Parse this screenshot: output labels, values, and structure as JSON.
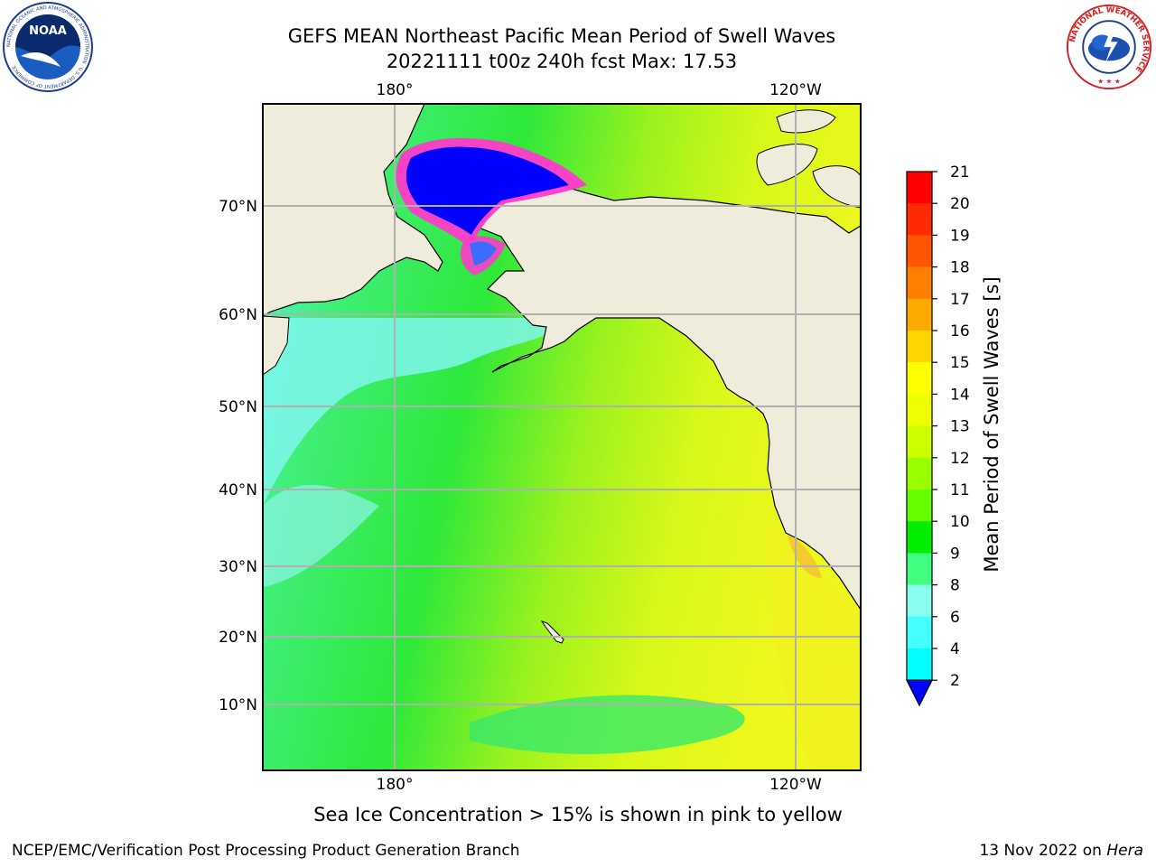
{
  "header": {
    "title_line1": "GEFS MEAN Northeast Pacific Mean Period of Swell Waves",
    "title_line2": "20221111 t00z 240h fcst   Max: 17.53"
  },
  "logos": {
    "left": {
      "text": "NOAA",
      "ring_text": "NATIONAL OCEANIC AND ATMOSPHERIC ADMINISTRATION · U.S. DEPARTMENT OF COMMERCE"
    },
    "right": {
      "ring_text": "NATIONAL WEATHER SERVICE"
    }
  },
  "map": {
    "lon_labels": [
      "180°",
      "120°W"
    ],
    "lat_labels": [
      "70°N",
      "60°N",
      "50°N",
      "40°N",
      "30°N",
      "20°N",
      "10°N"
    ],
    "colors": {
      "land": "#efecdc",
      "grid": "#b0b0b0",
      "ice_deep": "#0000ff",
      "ice_edge": "#ff33cc"
    }
  },
  "colorbar": {
    "title": "Mean Period of Swell Waves [s]",
    "ticks": [
      "21",
      "20",
      "19",
      "18",
      "17",
      "16",
      "15",
      "14",
      "13",
      "12",
      "11",
      "10",
      "9",
      "8",
      "6",
      "4",
      "2"
    ],
    "colors": [
      "#ff0000",
      "#ff2a00",
      "#ff5500",
      "#ff8000",
      "#ffaa00",
      "#ffd500",
      "#ffff00",
      "#eeff00",
      "#ccff00",
      "#99ff00",
      "#66ff00",
      "#00ee00",
      "#40ff80",
      "#88ffee",
      "#44ffff",
      "#00ffff",
      "#00aaff",
      "#0000ff"
    ]
  },
  "footer": {
    "caption": "Sea Ice Concentration > 15% is shown in pink to yellow",
    "credit": "NCEP/EMC/Verification Post Processing Product Generation Branch",
    "date_prefix": "13 Nov 2022 on ",
    "date_host": "Hera"
  }
}
